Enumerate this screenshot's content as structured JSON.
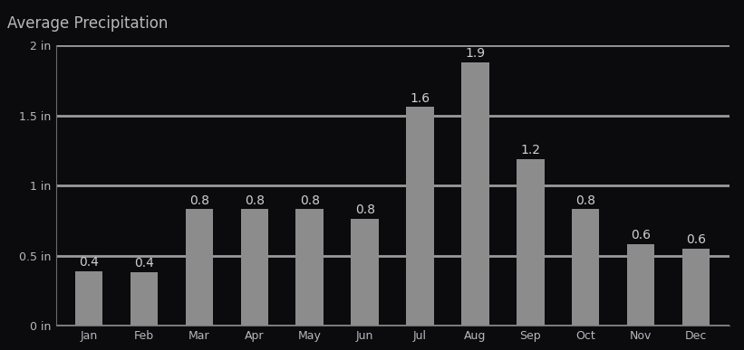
{
  "chart_data": {
    "type": "bar",
    "title": "Average Precipitation",
    "categories": [
      "Jan",
      "Feb",
      "Mar",
      "Apr",
      "May",
      "Jun",
      "Jul",
      "Aug",
      "Sep",
      "Oct",
      "Nov",
      "Dec"
    ],
    "values": [
      0.39,
      0.38,
      0.83,
      0.83,
      0.83,
      0.76,
      1.56,
      1.88,
      1.19,
      0.83,
      0.58,
      0.55
    ],
    "value_labels": [
      "0.4",
      "0.4",
      "0.8",
      "0.8",
      "0.8",
      "0.8",
      "1.6",
      "1.9",
      "1.2",
      "0.8",
      "0.6",
      "0.6"
    ],
    "color": "#8c8c8c",
    "ylim": [
      0,
      2
    ],
    "yticks": [
      {
        "value": 0,
        "label": "0 in"
      },
      {
        "value": 0.5,
        "label": "0.5 in"
      },
      {
        "value": 1,
        "label": "1 in"
      },
      {
        "value": 1.5,
        "label": "1.5 in"
      },
      {
        "value": 2,
        "label": "2 in"
      }
    ],
    "grid": true,
    "data_labels": true
  }
}
